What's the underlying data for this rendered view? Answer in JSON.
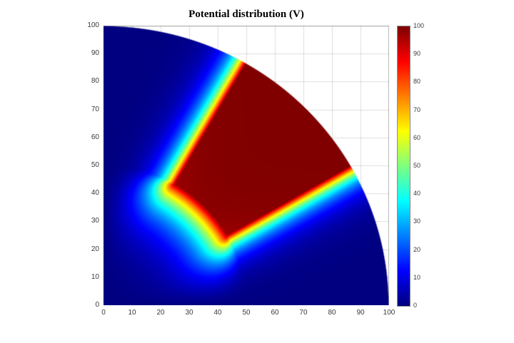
{
  "chart_data": {
    "type": "heatmap",
    "title": "Potential distribution (V)",
    "xlabel": "",
    "ylabel": "",
    "xlim": [
      0,
      100
    ],
    "ylim": [
      0,
      100
    ],
    "x_ticks": [
      0,
      10,
      20,
      30,
      40,
      50,
      60,
      70,
      80,
      90,
      100
    ],
    "y_ticks": [
      0,
      10,
      20,
      30,
      40,
      50,
      60,
      70,
      80,
      90,
      100
    ],
    "grid": true,
    "colormap": "jet",
    "colorbar": {
      "min": 0,
      "max": 100,
      "ticks": [
        0,
        10,
        20,
        30,
        40,
        50,
        60,
        70,
        80,
        90,
        100
      ],
      "position": "right"
    },
    "domain": {
      "shape": "quarter-disk",
      "center": [
        0,
        0
      ],
      "radius": 100,
      "angle_deg": [
        0,
        90
      ],
      "outside_color": "#ffffff"
    },
    "electrode": {
      "shape": "annular-sector",
      "r_inner": 50,
      "r_outer": 100,
      "theta_deg": [
        30,
        60
      ],
      "potential_V": 100
    },
    "boundary_potential_V": 0,
    "value_colors": {
      "min_color": "#000080",
      "max_color": "#800000"
    }
  }
}
